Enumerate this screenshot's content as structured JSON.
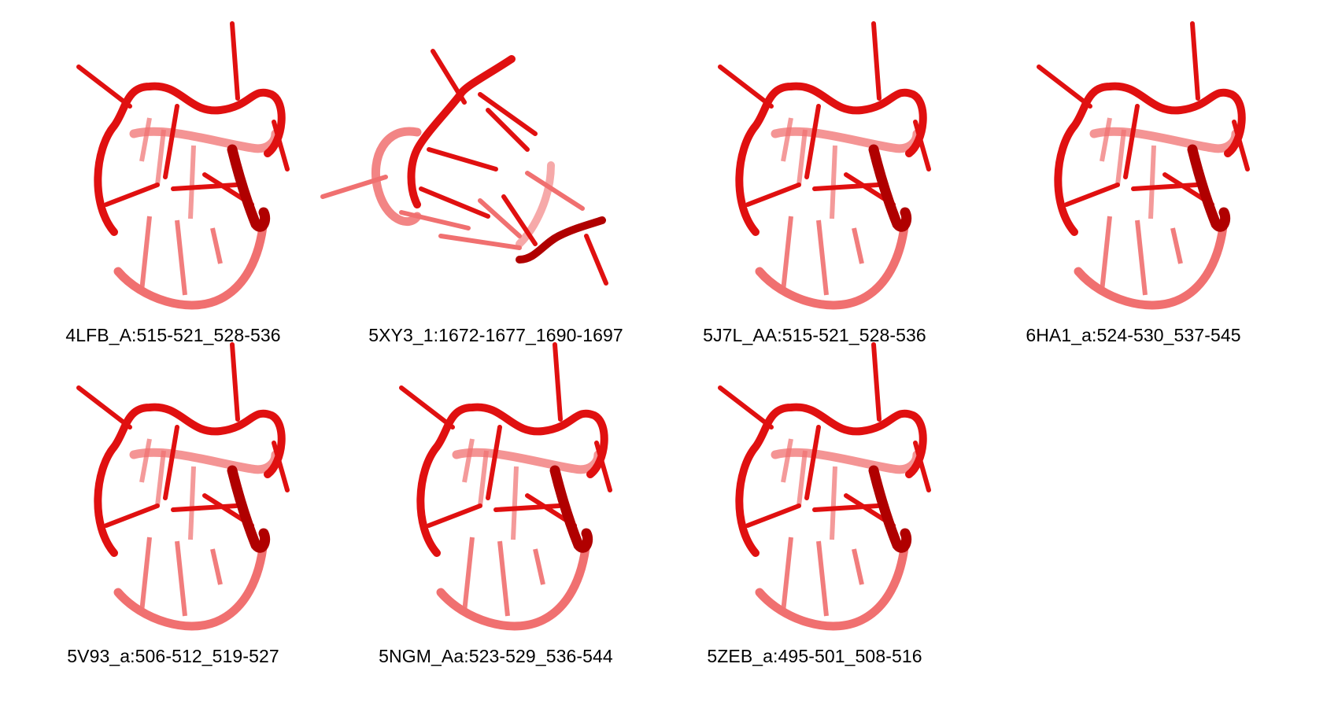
{
  "colors": {
    "backbone": "#e01010",
    "dark": "#b00000",
    "faded": "#f07070"
  },
  "structures": [
    {
      "label": "4LFB_A:515-521_528-536",
      "variant": "loop"
    },
    {
      "label": "5XY3_1:1672-1677_1690-1697",
      "variant": "open"
    },
    {
      "label": "5J7L_AA:515-521_528-536",
      "variant": "loop"
    },
    {
      "label": "6HA1_a:524-530_537-545",
      "variant": "loop"
    },
    {
      "label": "5V93_a:506-512_519-527",
      "variant": "loop"
    },
    {
      "label": "5NGM_Aa:523-529_536-544",
      "variant": "loop"
    },
    {
      "label": "5ZEB_a:495-501_508-516",
      "variant": "loop"
    }
  ]
}
